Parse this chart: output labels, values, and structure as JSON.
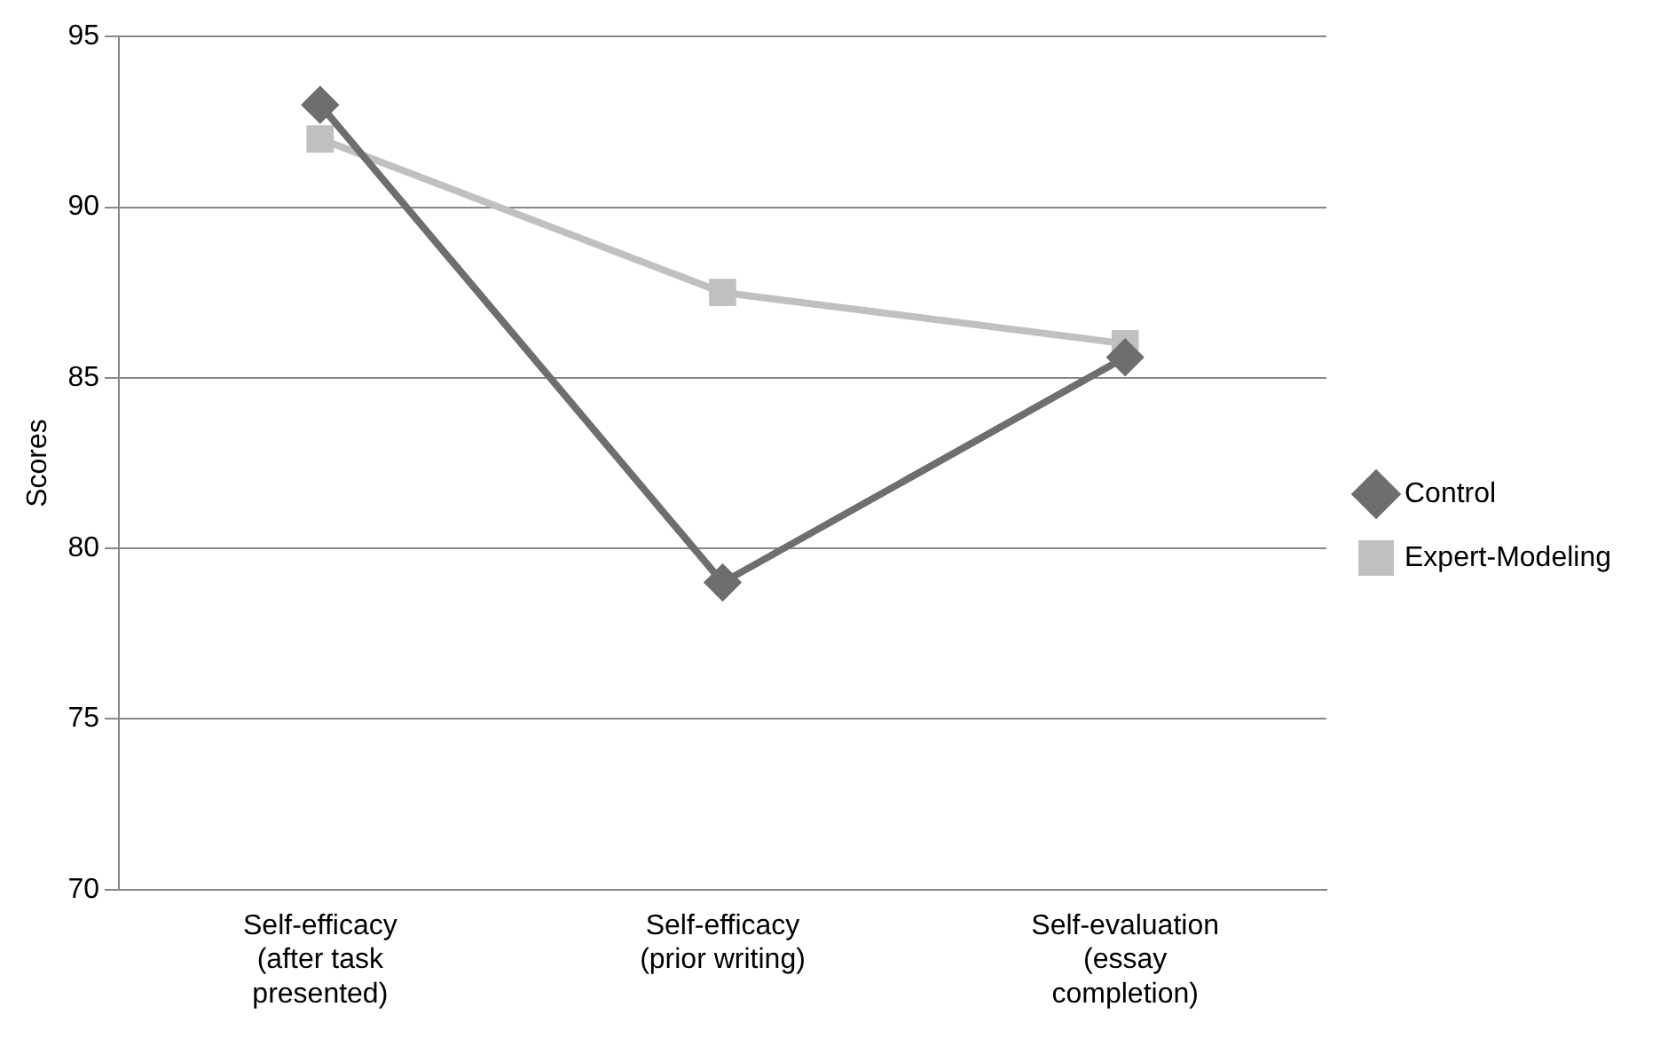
{
  "chart_data": {
    "type": "line",
    "ylabel": "Scores",
    "categories": [
      "Self-efficacy (after task presented)",
      "Self-efficacy (prior writing)",
      "Self-evaluation (essay completion)"
    ],
    "series": [
      {
        "name": "Control",
        "color": "#6e6e6e",
        "values": [
          93,
          79,
          85.6
        ],
        "marker": "diamond"
      },
      {
        "name": "Expert-Modeling",
        "color": "#c0c0c0",
        "values": [
          92,
          87.5,
          86
        ],
        "marker": "square"
      }
    ],
    "ylim": [
      70,
      95
    ],
    "yticks": [
      70,
      75,
      80,
      85,
      90,
      95
    ],
    "grid": "y",
    "legend": "right",
    "line_style": "solid"
  }
}
